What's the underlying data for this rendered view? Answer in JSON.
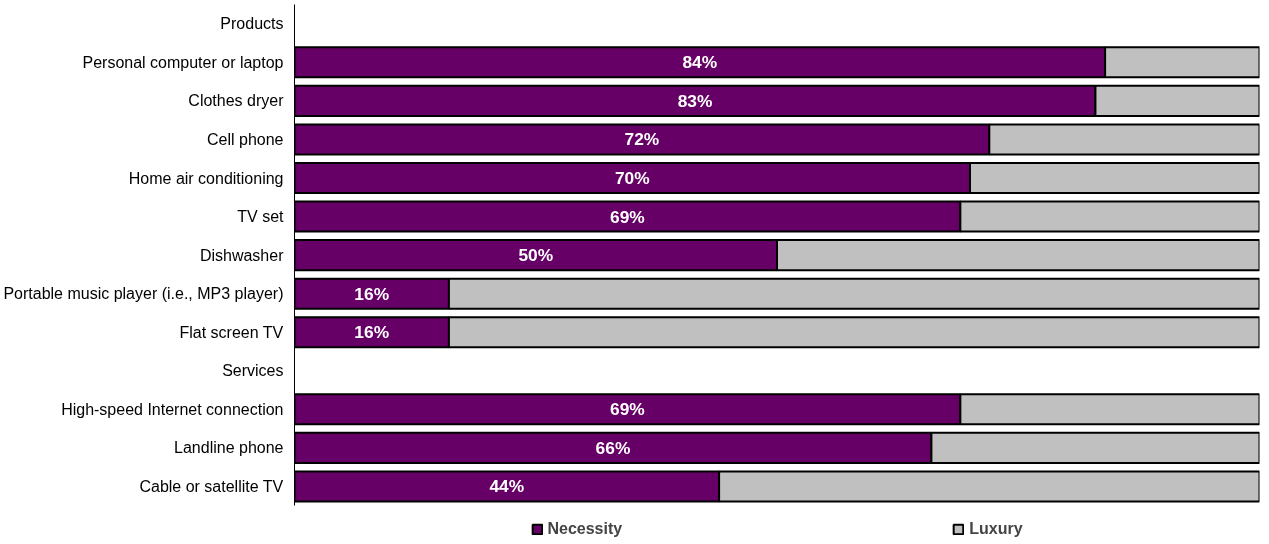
{
  "chart_data": {
    "type": "bar",
    "orientation": "horizontal",
    "stacked": true,
    "categories": [
      "Products",
      "Personal computer or laptop",
      "Clothes dryer",
      "Cell phone",
      "Home air conditioning",
      "TV set",
      "Dishwasher",
      "Portable music player (i.e., MP3 player)",
      "Flat screen TV",
      "Services",
      "High-speed Internet connection",
      "Landline phone",
      "Cable or satellite TV"
    ],
    "series": [
      {
        "name": "Necessity",
        "color": "#660066",
        "values": [
          null,
          84,
          83,
          72,
          70,
          69,
          50,
          16,
          16,
          null,
          69,
          66,
          44
        ],
        "value_labels": [
          null,
          "84%",
          "83%",
          "72%",
          "70%",
          "69%",
          "50%",
          "16%",
          "16%",
          null,
          "69%",
          "66%",
          "44%"
        ]
      },
      {
        "name": "Luxury",
        "color": "#c0c0c0",
        "values": [
          null,
          16,
          17,
          28,
          30,
          31,
          50,
          84,
          84,
          null,
          31,
          34,
          56
        ]
      }
    ],
    "xlim": [
      0,
      100
    ],
    "legend": "bottom",
    "grid": false
  }
}
